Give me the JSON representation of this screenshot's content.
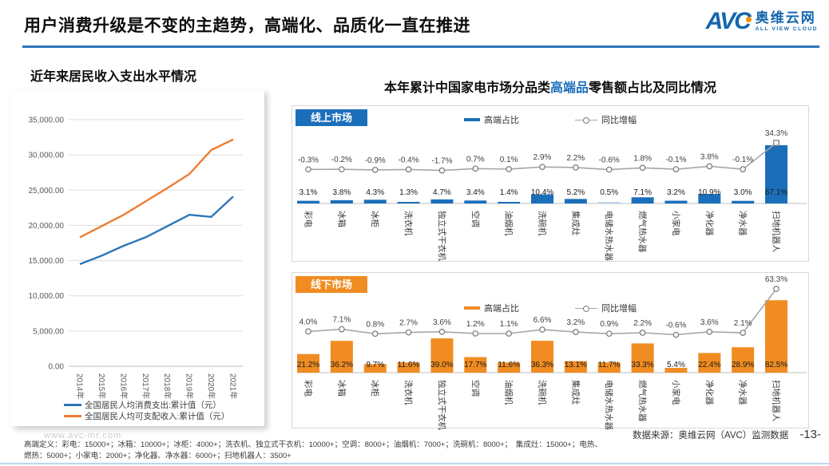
{
  "header": {
    "title": "用户消费升级是不变的主趋势，高端化、品质化一直在推进",
    "logo": {
      "mark": "AVC",
      "name_cn": "奥维云网",
      "name_en": "ALL VIEW CLOUD"
    }
  },
  "left_panel": {
    "title": "近年来居民收入支出水平情况"
  },
  "right_panel": {
    "title_prefix": "本年累计中国家电市场分品类",
    "title_highlight": "高端品",
    "title_suffix": "零售额占比及同比情况",
    "online_badge": "线上市场",
    "offline_badge": "线下市场",
    "legend_bar": "高端占比",
    "legend_line": "同比增幅"
  },
  "footer": {
    "watermark": "www.avc-mr.com",
    "note_lines": [
      "高端定义：彩电：15000+；冰箱：10000+；冰柜：4000+；洗衣机、独立式干衣机：10000+；空调：8000+；油烟机：7000+；洗碗机：8000+；　集成灶：15000+；电热、",
      "燃热：5000+；小家电：2000+；净化器、净水器：6000+；扫地机器人：3500+"
    ],
    "source": "数据来源：奥维云网（AVC）监测数据",
    "page": "-13-"
  },
  "colors": {
    "blue": "#1B6FBA",
    "light_blue": "#BDD7EE",
    "orange": "#F08C21",
    "line_gray": "#A6A6A6",
    "marker_stroke": "#7f7f7f",
    "grid": "#DDDDDD",
    "axis": "#BFBFBF",
    "left_blue": "#2E75B6",
    "left_orange": "#ED7D31"
  },
  "chart_data": [
    {
      "type": "line",
      "title": "近年来居民收入支出水平情况",
      "x": [
        "2014年",
        "2015年",
        "2016年",
        "2017年",
        "2018年",
        "2019年",
        "2020年",
        "2021年"
      ],
      "y_ticks": [
        "0.00",
        "5,000.00",
        "10,000.00",
        "15,000.00",
        "20,000.00",
        "25,000.00",
        "30,000.00",
        "35,000.00"
      ],
      "ylim": [
        0,
        35000
      ],
      "grid": true,
      "legend_position": "bottom",
      "series": [
        {
          "name": "全国居民人均消费支出:累计值（元）",
          "color": "#2E75B6",
          "values": [
            14500,
            15700,
            17100,
            18300,
            19900,
            21500,
            21200,
            24100
          ]
        },
        {
          "name": "全国居民人均可支配收入:累计值（元）",
          "color": "#ED7D31",
          "values": [
            18300,
            19900,
            21500,
            23400,
            25300,
            27300,
            30700,
            32200
          ]
        }
      ]
    },
    {
      "type": "bar",
      "title": "线上市场",
      "categories": [
        "彩电",
        "冰箱",
        "冰柜",
        "洗衣机",
        "独立式干衣机",
        "空调",
        "油烟机",
        "洗碗机",
        "集成灶",
        "电储水热水器",
        "燃气热水器",
        "小家电",
        "净化器",
        "净水器",
        "扫地机器人"
      ],
      "series": [
        {
          "name": "高端占比",
          "type": "bar",
          "color": "#1B6FBA",
          "values": [
            3.1,
            3.8,
            4.3,
            1.3,
            4.7,
            3.4,
            1.4,
            10.4,
            5.2,
            0.5,
            7.1,
            3.2,
            10.9,
            3.0,
            67.1
          ]
        },
        {
          "name": "同比增幅",
          "type": "line",
          "color": "#A6A6A6",
          "values": [
            -0.3,
            -0.2,
            -0.9,
            -0.4,
            -1.7,
            0.7,
            0.1,
            2.9,
            2.2,
            -0.6,
            1.8,
            -0.1,
            3.8,
            -0.1,
            34.3
          ]
        }
      ],
      "legend_position": "top",
      "value_suffix": "%"
    },
    {
      "type": "bar",
      "title": "线下市场",
      "categories": [
        "彩电",
        "冰箱",
        "冰柜",
        "洗衣机",
        "独立式干衣机",
        "空调",
        "油烟机",
        "洗碗机",
        "集成灶",
        "电储水热水器",
        "燃气热水器",
        "小家电",
        "净化器",
        "净水器",
        "扫地机器人"
      ],
      "series": [
        {
          "name": "高端占比",
          "type": "bar",
          "color": "#F08C21",
          "values": [
            21.2,
            36.2,
            9.7,
            11.6,
            39.0,
            17.7,
            11.6,
            36.3,
            13.1,
            11.7,
            33.3,
            5.4,
            22.4,
            28.9,
            82.5
          ]
        },
        {
          "name": "同比增幅",
          "type": "line",
          "color": "#A6A6A6",
          "values": [
            4.0,
            7.1,
            0.8,
            2.7,
            3.6,
            1.2,
            1.1,
            6.6,
            3.2,
            0.9,
            2.2,
            -0.6,
            3.6,
            2.1,
            63.3
          ]
        }
      ],
      "legend_position": "top",
      "value_suffix": "%"
    }
  ]
}
